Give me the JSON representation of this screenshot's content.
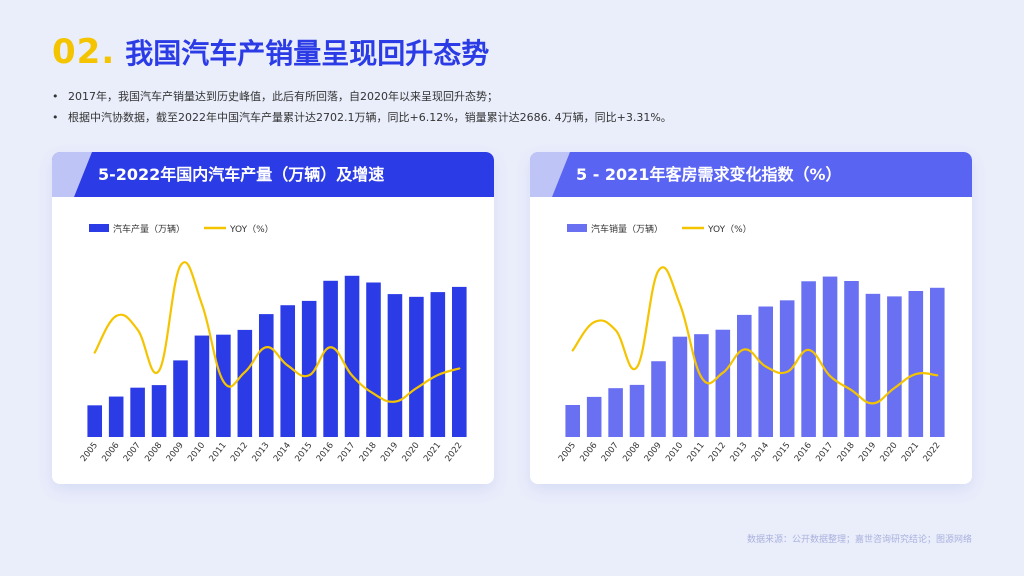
{
  "header": {
    "number": "02.",
    "title": "我国汽车产销量呈现回升态势"
  },
  "bullets": [
    "2017年，我国汽车产销量达到历史峰值，此后有所回落，自2020年以来呈现回升态势；",
    "根据中汽协数据，截至2022年中国汽车产量累计达2702.1万辆，同比+6.12%，销量累计达2686. 4万辆，同比+3.31%。"
  ],
  "source": "数据来源：公开数据整理；嘉世咨询研究结论；图源网络",
  "colors": {
    "left_bar": "#2b3be6",
    "right_bar": "#6a70f2",
    "yoy_line": "#f5c400"
  },
  "chart_data": [
    {
      "type": "bar",
      "title": "5-2022年国内汽车产量（万辆）及增速",
      "legend": [
        "汽车产量（万辆）",
        "YOY（%）"
      ],
      "legend_position": "top-left",
      "grid": false,
      "categories": [
        "2005",
        "2006",
        "2007",
        "2008",
        "2009",
        "2010",
        "2011",
        "2012",
        "2013",
        "2014",
        "2015",
        "2016",
        "2017",
        "2018",
        "2019",
        "2020",
        "2021",
        "2022"
      ],
      "series": [
        {
          "name": "汽车产量（万辆）",
          "type": "bar",
          "axis": "left",
          "values": [
            570,
            728,
            888,
            934,
            1379,
            1826,
            1842,
            1928,
            2212,
            2372,
            2450,
            2812,
            2902,
            2781,
            2572,
            2523,
            2608,
            2702
          ]
        },
        {
          "name": "YOY（%）",
          "type": "line",
          "axis": "right",
          "values": [
            12.6,
            27.6,
            22.0,
            5.2,
            48.3,
            32.4,
            0.8,
            4.6,
            14.8,
            7.3,
            3.3,
            14.8,
            3.2,
            -4.2,
            -7.5,
            -2.0,
            3.4,
            6.1
          ]
        }
      ],
      "ylim": [
        0,
        3600
      ],
      "y2lim": [
        -22,
        60
      ]
    },
    {
      "type": "bar",
      "title": "5 - 2021年客房需求变化指数（%）",
      "legend": [
        "汽车销量（万辆）",
        "YOY（%）"
      ],
      "legend_position": "top-left",
      "grid": false,
      "categories": [
        "2005",
        "2006",
        "2007",
        "2008",
        "2009",
        "2010",
        "2011",
        "2012",
        "2013",
        "2014",
        "2015",
        "2016",
        "2017",
        "2018",
        "2019",
        "2020",
        "2021",
        "2022"
      ],
      "series": [
        {
          "name": "汽车销量（万辆）",
          "type": "bar",
          "axis": "left",
          "values": [
            576,
            722,
            879,
            938,
            1364,
            1806,
            1851,
            1931,
            2198,
            2349,
            2460,
            2803,
            2888,
            2808,
            2577,
            2531,
            2628,
            2686
          ]
        },
        {
          "name": "YOY（%）",
          "type": "line",
          "axis": "right",
          "values": [
            13.5,
            25.1,
            21.8,
            6.7,
            46.2,
            32.4,
            2.5,
            4.3,
            13.9,
            6.9,
            4.7,
            13.7,
            3.0,
            -2.8,
            -8.2,
            -1.9,
            3.8,
            3.3
          ]
        }
      ],
      "ylim": [
        0,
        3600
      ],
      "y2lim": [
        -22,
        60
      ]
    }
  ]
}
